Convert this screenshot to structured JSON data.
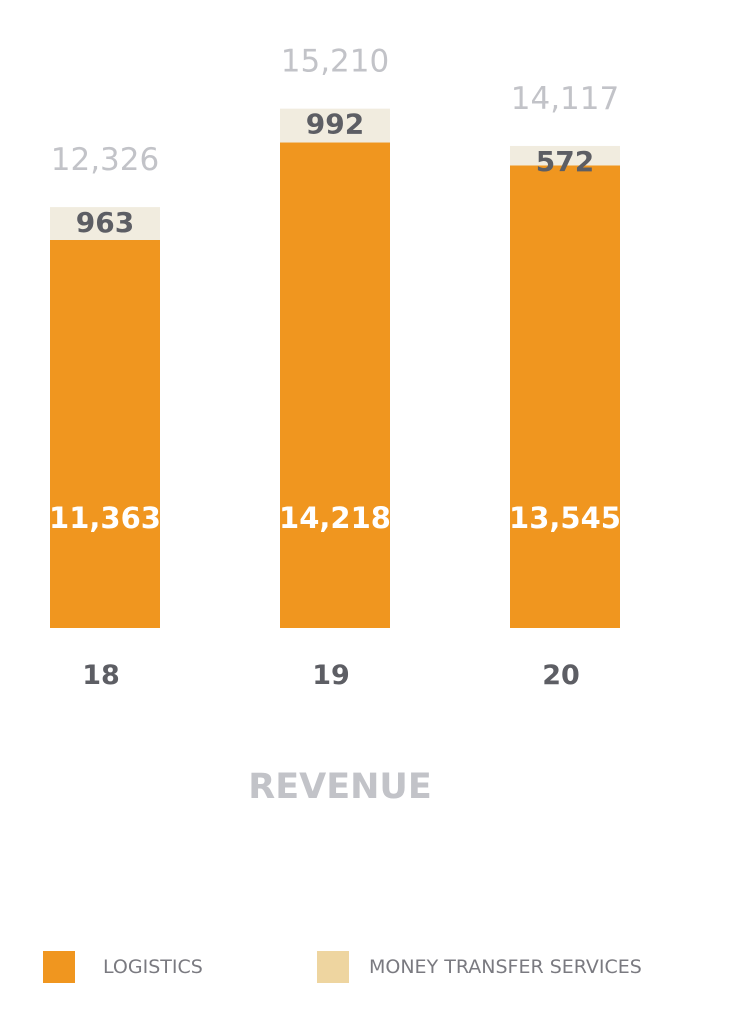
{
  "chart_data": {
    "type": "bar",
    "stacked": true,
    "title": "REVENUE",
    "categories": [
      "18",
      "19",
      "20"
    ],
    "series": [
      {
        "name": "LOGISTICS",
        "values": [
          11363,
          14218,
          13545
        ]
      },
      {
        "name": "MONEY TRANSFER SERVICES",
        "values": [
          963,
          992,
          572
        ]
      }
    ],
    "totals": [
      "12,326",
      "15,210",
      "14,117"
    ],
    "value_labels": {
      "LOGISTICS": [
        "11,363",
        "14,218",
        "13,545"
      ],
      "MONEY TRANSFER SERVICES": [
        "963",
        "992",
        "572"
      ]
    },
    "ylim": [
      0,
      16500
    ],
    "grid": false,
    "legend_position": "bottom"
  },
  "colors": {
    "logistics": "#f0961f",
    "money_transfer": "#f1ecdf",
    "legend_money_transfer": "#eed5a0",
    "total_text": "#c2c3c8",
    "dark_text": "#5d5e64",
    "title_text": "#c2c3c8",
    "on_bar_text": "#ffffff"
  }
}
